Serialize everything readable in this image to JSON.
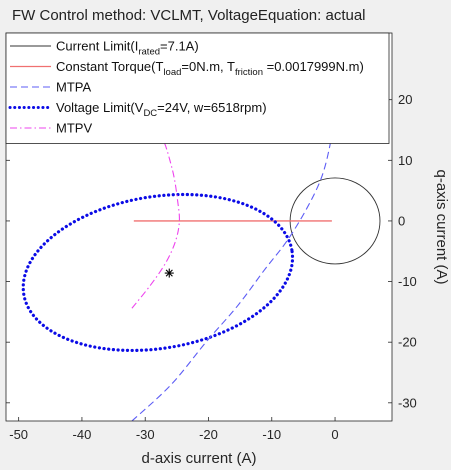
{
  "figure": {
    "title": "FW Control method: VCLMT, VoltageEquation: actual"
  },
  "chart_data": {
    "type": "line",
    "xlabel": "d-axis current (A)",
    "ylabel": "q-axis current (A)",
    "xlim": [
      -52,
      9
    ],
    "ylim": [
      -33,
      31
    ],
    "x_ticks": [
      -50,
      -40,
      -30,
      -20,
      -10,
      0
    ],
    "y_ticks": [
      -30,
      -20,
      -10,
      0,
      10,
      20
    ],
    "grid": false,
    "legend_position": "top-left",
    "colors": {
      "current_limit": "#333333",
      "constant_torque": "#f07070",
      "mtpa": "#5d5df5",
      "voltage_limit": "#0b0be6",
      "mtpv": "#ee44ee",
      "operating_point": "#000000"
    },
    "legend": [
      {
        "id": "current_limit",
        "parts": [
          [
            "Current Limit(I",
            ""
          ],
          [
            "rated",
            "sub"
          ],
          [
            "=7.1A)",
            ""
          ]
        ],
        "style": "solid-thin"
      },
      {
        "id": "constant_torque",
        "parts": [
          [
            "Constant Torque(T",
            ""
          ],
          [
            "load",
            "sub"
          ],
          [
            "=0N.m, T",
            ""
          ],
          [
            "friction",
            "sub"
          ],
          [
            " =0.0017999N.m)",
            ""
          ]
        ],
        "style": "solid"
      },
      {
        "id": "mtpa",
        "parts": [
          [
            "MTPA",
            ""
          ]
        ],
        "style": "dashed"
      },
      {
        "id": "voltage_limit",
        "parts": [
          [
            "Voltage Limit(V",
            ""
          ],
          [
            "DC",
            "sub"
          ],
          [
            "=24V, w=6518rpm)",
            ""
          ]
        ],
        "style": "dotted-thick"
      },
      {
        "id": "mtpv",
        "parts": [
          [
            "MTPV",
            ""
          ]
        ],
        "style": "dashdot"
      }
    ],
    "series": [
      {
        "id": "current_limit",
        "kind": "circle",
        "center": [
          0,
          0
        ],
        "radius": 7.1
      },
      {
        "id": "constant_torque",
        "kind": "line",
        "x": [
          -31.8,
          -0.5
        ],
        "y": [
          0,
          0
        ]
      },
      {
        "id": "voltage_limit",
        "kind": "ellipse",
        "center": [
          -28,
          -8.5
        ],
        "rx": 21.5,
        "ry": 12.5,
        "rotation_deg": 10
      },
      {
        "id": "mtpa",
        "kind": "curve",
        "x": [
          -32.1,
          -25.9,
          -20.4,
          -15.4,
          -11.1,
          -7.6,
          -4.5,
          -2.2,
          -0.9,
          -0.4,
          -0.9,
          -2.2,
          -4.5
        ],
        "y": [
          -33,
          -27,
          -20,
          -14,
          -8,
          -3.3,
          2,
          7,
          12,
          16,
          20,
          25,
          31
        ]
      },
      {
        "id": "mtpv",
        "kind": "curve",
        "x": [
          -32.1,
          -29.1,
          -26.7,
          -25.2,
          -24.6,
          -24.9,
          -25.4,
          -26.1,
          -27,
          -28.4,
          -30
        ],
        "y": [
          -14.4,
          -10.5,
          -6.8,
          -3.3,
          0,
          3.5,
          7,
          10,
          13,
          16,
          18
        ]
      },
      {
        "id": "operating_point",
        "kind": "marker",
        "marker": "asterisk",
        "x": -26.2,
        "y": -8.6
      }
    ]
  }
}
